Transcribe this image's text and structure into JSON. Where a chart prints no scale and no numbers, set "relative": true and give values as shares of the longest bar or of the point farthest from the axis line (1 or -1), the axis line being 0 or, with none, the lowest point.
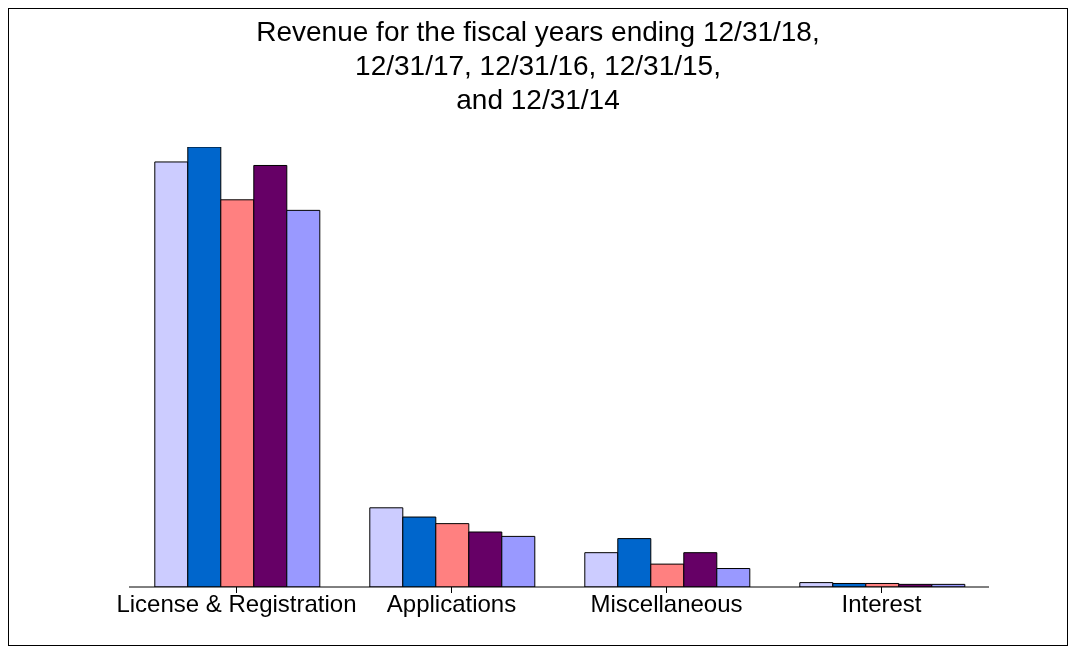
{
  "chart_data": {
    "type": "bar",
    "title": "Revenue for the fiscal years ending 12/31/18,\n12/31/17, 12/31/16, 12/31/15,\nand 12/31/14",
    "relative": true,
    "categories": [
      "License & Registration",
      "Applications",
      "Miscellaneous",
      "Interest"
    ],
    "series": [
      {
        "color": "#ccccff",
        "values": [
          0.966,
          0.18,
          0.078,
          0.01
        ]
      },
      {
        "color": "#0066cc",
        "values": [
          1,
          0.159,
          0.11,
          0.008
        ]
      },
      {
        "color": "#ff8080",
        "values": [
          0.88,
          0.144,
          0.052,
          0.008
        ]
      },
      {
        "color": "#660066",
        "values": [
          0.958,
          0.125,
          0.078,
          0.006
        ]
      },
      {
        "color": "#9999ff",
        "values": [
          0.856,
          0.115,
          0.042,
          0.006
        ]
      }
    ],
    "grid": false,
    "legend": false
  }
}
